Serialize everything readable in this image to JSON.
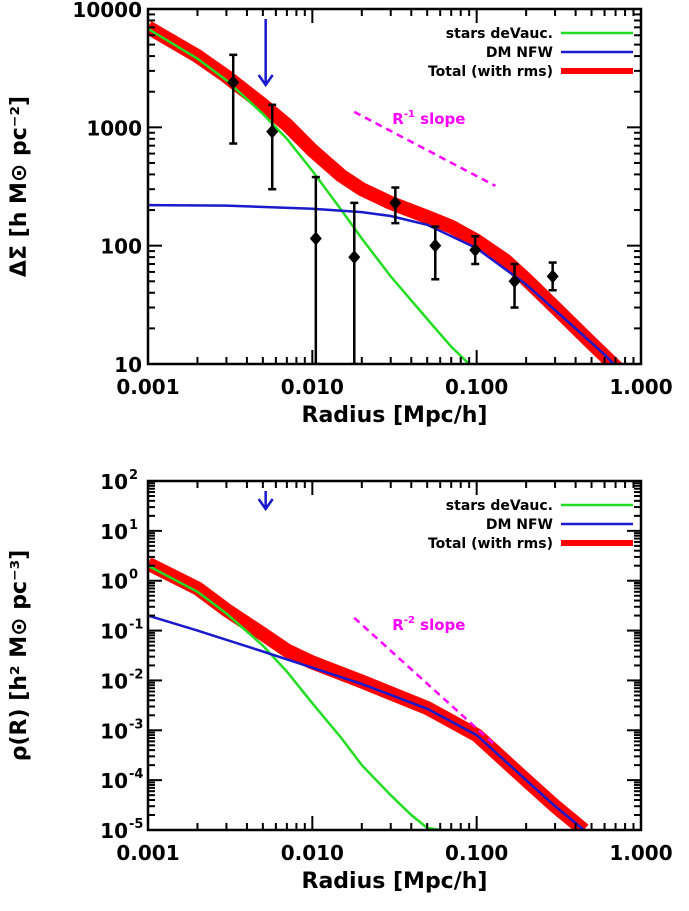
{
  "chart_data": [
    {
      "type": "line",
      "xlabel": "Radius [Mpc/h]",
      "ylabel": "ΔΣ   [h M⊙ pc⁻²]",
      "xscale": "log",
      "yscale": "log",
      "xlim": [
        0.001,
        1.0
      ],
      "ylim": [
        10,
        10000
      ],
      "xtick_labels": [
        "0.001",
        "0.010",
        "0.100",
        "1.000"
      ],
      "ytick_labels": [
        "10",
        "100",
        "1000",
        "10000"
      ],
      "legend_position": "top-right",
      "series": [
        {
          "name": "stars deVauc.",
          "color": "#22dd22",
          "x": [
            0.001,
            0.002,
            0.003,
            0.005,
            0.007,
            0.01,
            0.015,
            0.02,
            0.03,
            0.05,
            0.07,
            0.09
          ],
          "y": [
            6800,
            3800,
            2500,
            1300,
            800,
            430,
            200,
            115,
            55,
            24,
            14,
            10
          ]
        },
        {
          "name": "DM NFW",
          "color": "#1a1acc",
          "x": [
            0.001,
            0.003,
            0.01,
            0.02,
            0.03,
            0.05,
            0.1,
            0.2,
            0.4,
            0.6,
            0.8
          ],
          "y": [
            220,
            218,
            205,
            192,
            178,
            150,
            95,
            47,
            20,
            12,
            8
          ]
        },
        {
          "name": "Total (with rms)",
          "color": "#ff0000",
          "x": [
            0.001,
            0.002,
            0.003,
            0.005,
            0.007,
            0.01,
            0.015,
            0.02,
            0.03,
            0.05,
            0.07,
            0.1,
            0.15,
            0.2,
            0.3,
            0.5,
            0.8
          ],
          "y": [
            7000,
            4000,
            2700,
            1550,
            1050,
            640,
            390,
            300,
            230,
            175,
            145,
            110,
            75,
            52,
            30,
            15,
            8
          ]
        }
      ],
      "points": {
        "x": [
          0.0033,
          0.0057,
          0.0105,
          0.018,
          0.032,
          0.056,
          0.098,
          0.17,
          0.29
        ],
        "y": [
          2400,
          920,
          115,
          80,
          230,
          100,
          92,
          50,
          55
        ],
        "ylow": [
          730,
          300,
          10,
          10,
          155,
          52,
          70,
          30,
          42
        ],
        "yhigh": [
          4100,
          1550,
          380,
          230,
          310,
          145,
          120,
          70,
          72
        ]
      },
      "annotation": {
        "label": "R",
        "exponent": "-1",
        "suffix": " slope",
        "line_x": [
          0.018,
          0.13
        ],
        "line_y": [
          1350,
          320
        ]
      },
      "marker_arrow_x": 0.0052
    },
    {
      "type": "line",
      "xlabel": "Radius [Mpc/h]",
      "ylabel": "ρ(R)   [h² M⊙ pc⁻³]",
      "xscale": "log",
      "yscale": "log",
      "xlim": [
        0.001,
        1.0
      ],
      "ylim": [
        1e-05,
        100
      ],
      "xtick_labels": [
        "0.001",
        "0.010",
        "0.100",
        "1.000"
      ],
      "ytick_labels": [
        "10",
        "10",
        "10",
        "10",
        "10",
        "10",
        "10",
        "10"
      ],
      "ytick_exponents": [
        "-5",
        "-4",
        "-3",
        "-2",
        "-1",
        "0",
        "1",
        "2"
      ],
      "legend_position": "top-right",
      "series": [
        {
          "name": "stars deVauc.",
          "color": "#22dd22",
          "x": [
            0.001,
            0.002,
            0.003,
            0.005,
            0.007,
            0.01,
            0.015,
            0.02,
            0.03,
            0.04,
            0.05,
            0.06
          ],
          "y": [
            2.0,
            0.6,
            0.22,
            0.05,
            0.015,
            0.0035,
            0.0007,
            0.0002,
            5e-05,
            2e-05,
            1.1e-05,
            1e-05
          ]
        },
        {
          "name": "DM NFW",
          "color": "#1a1acc",
          "x": [
            0.001,
            0.002,
            0.005,
            0.01,
            0.02,
            0.05,
            0.1,
            0.2,
            0.3,
            0.45
          ],
          "y": [
            0.2,
            0.1,
            0.038,
            0.018,
            0.0085,
            0.0027,
            0.0008,
            0.0001,
            3e-05,
            1e-05
          ]
        },
        {
          "name": "Total (with rms)",
          "color": "#ff0000",
          "x": [
            0.001,
            0.002,
            0.003,
            0.005,
            0.007,
            0.01,
            0.02,
            0.05,
            0.1,
            0.2,
            0.3,
            0.45
          ],
          "y": [
            2.2,
            0.7,
            0.26,
            0.085,
            0.04,
            0.023,
            0.0095,
            0.0028,
            0.0008,
            0.0001,
            3e-05,
            1e-05
          ]
        }
      ],
      "annotation": {
        "label": "R",
        "exponent": "-2",
        "suffix": " slope",
        "line_x": [
          0.018,
          0.13
        ],
        "line_y": [
          0.18,
          0.0005
        ]
      },
      "marker_arrow_x": 0.0052
    }
  ]
}
